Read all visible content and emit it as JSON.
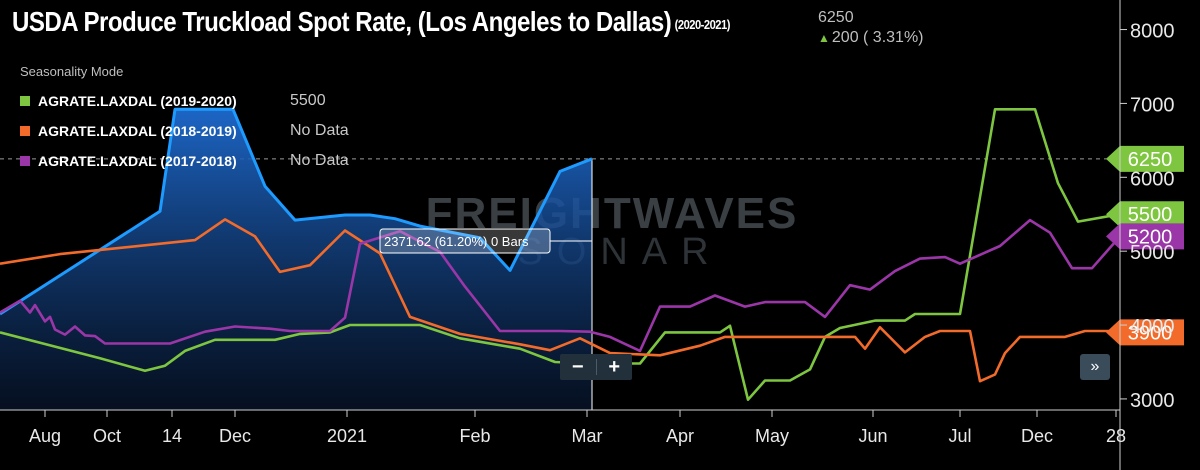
{
  "title": "USDA Produce Truckload Spot Rate, (Los Angeles to Dallas)",
  "title_range": "(2020-2021)",
  "last_value": "6250",
  "change_text": "200 ( 3.31%)",
  "change_arrow": "▲",
  "seasonality_label": "Seasonality Mode",
  "watermark": "FREIGHTWAVES",
  "watermark_sub": "SONAR",
  "tooltip_text": "2371.62 (61.20%) 0 Bars",
  "controls": {
    "zoom_out": "−",
    "zoom_in": "+",
    "expand": "»"
  },
  "legend": [
    {
      "name": "AGRATE.LAXDAL (2019-2020)",
      "value": "5500",
      "color": "#7ec640"
    },
    {
      "name": "AGRATE.LAXDAL (2018-2019)",
      "value": "No Data",
      "color": "#f26b2a"
    },
    {
      "name": "AGRATE.LAXDAL (2017-2018)",
      "value": "No Data",
      "color": "#9b36a8"
    }
  ],
  "chart_data": {
    "type": "line",
    "x_ticks": [
      "Aug",
      "Oct",
      "14",
      "Dec",
      "2021",
      "Feb",
      "Mar",
      "Apr",
      "May",
      "Jun",
      "Jul",
      "Dec",
      "28"
    ],
    "y_ticks": [
      3000,
      4000,
      5000,
      6000,
      7000,
      8000
    ],
    "y_tick_labels": [
      "3000",
      "4000",
      "5000",
      "6000",
      "7000",
      "8000"
    ],
    "ylim": [
      2850,
      8400
    ],
    "reference_line": 6250,
    "value_labels": [
      {
        "value": 6250,
        "text": "6250",
        "color": "#7ec640"
      },
      {
        "value": 5500,
        "text": "5500",
        "color": "#7ec640"
      },
      {
        "value": 5200,
        "text": "5200",
        "color": "#9b36a8"
      },
      {
        "value": 3900,
        "text": "3900",
        "color": "#f26b2a"
      }
    ],
    "series": [
      {
        "color": "#1e9bff",
        "fill": true,
        "points": [
          [
            0,
            4150
          ],
          [
            160,
            5540
          ],
          [
            175,
            6920
          ],
          [
            233,
            6920
          ],
          [
            265,
            5880
          ],
          [
            295,
            5420
          ],
          [
            345,
            5490
          ],
          [
            370,
            5490
          ],
          [
            395,
            5440
          ],
          [
            420,
            5340
          ],
          [
            450,
            5260
          ],
          [
            480,
            5180
          ],
          [
            510,
            4740
          ],
          [
            560,
            6080
          ],
          [
            592,
            6250
          ]
        ]
      },
      {
        "color": "#7ec640",
        "points": [
          [
            0,
            3900
          ],
          [
            100,
            3550
          ],
          [
            145,
            3380
          ],
          [
            165,
            3450
          ],
          [
            185,
            3650
          ],
          [
            215,
            3800
          ],
          [
            275,
            3800
          ],
          [
            300,
            3880
          ],
          [
            330,
            3900
          ],
          [
            350,
            4000
          ],
          [
            420,
            4000
          ],
          [
            460,
            3820
          ],
          [
            520,
            3680
          ],
          [
            555,
            3500
          ],
          [
            590,
            3480
          ],
          [
            640,
            3480
          ],
          [
            665,
            3900
          ],
          [
            720,
            3900
          ],
          [
            730,
            3990
          ],
          [
            748,
            2990
          ],
          [
            765,
            3250
          ],
          [
            790,
            3250
          ],
          [
            810,
            3400
          ],
          [
            825,
            3840
          ],
          [
            840,
            3960
          ],
          [
            875,
            4060
          ],
          [
            905,
            4060
          ],
          [
            915,
            4150
          ],
          [
            960,
            4150
          ],
          [
            995,
            6920
          ],
          [
            1035,
            6920
          ],
          [
            1058,
            5920
          ],
          [
            1078,
            5400
          ],
          [
            1120,
            5500
          ]
        ]
      },
      {
        "color": "#f26b2a",
        "points": [
          [
            0,
            4830
          ],
          [
            60,
            4960
          ],
          [
            195,
            5150
          ],
          [
            225,
            5430
          ],
          [
            255,
            5200
          ],
          [
            280,
            4720
          ],
          [
            310,
            4810
          ],
          [
            345,
            5280
          ],
          [
            380,
            4970
          ],
          [
            410,
            4110
          ],
          [
            460,
            3880
          ],
          [
            520,
            3740
          ],
          [
            550,
            3660
          ],
          [
            580,
            3820
          ],
          [
            610,
            3620
          ],
          [
            660,
            3590
          ],
          [
            700,
            3720
          ],
          [
            725,
            3840
          ],
          [
            750,
            3840
          ],
          [
            800,
            3840
          ],
          [
            855,
            3840
          ],
          [
            865,
            3680
          ],
          [
            880,
            3970
          ],
          [
            905,
            3630
          ],
          [
            925,
            3840
          ],
          [
            940,
            3920
          ],
          [
            970,
            3920
          ],
          [
            980,
            3240
          ],
          [
            995,
            3330
          ],
          [
            1005,
            3620
          ],
          [
            1020,
            3840
          ],
          [
            1065,
            3840
          ],
          [
            1085,
            3920
          ],
          [
            1120,
            3920
          ]
        ]
      },
      {
        "color": "#9b36a8",
        "points": [
          [
            0,
            4170
          ],
          [
            20,
            4330
          ],
          [
            30,
            4170
          ],
          [
            35,
            4270
          ],
          [
            45,
            4050
          ],
          [
            50,
            4110
          ],
          [
            55,
            3940
          ],
          [
            65,
            3870
          ],
          [
            75,
            3980
          ],
          [
            85,
            3860
          ],
          [
            95,
            3850
          ],
          [
            105,
            3750
          ],
          [
            170,
            3750
          ],
          [
            205,
            3910
          ],
          [
            235,
            3980
          ],
          [
            270,
            3950
          ],
          [
            290,
            3920
          ],
          [
            330,
            3920
          ],
          [
            345,
            4100
          ],
          [
            360,
            5100
          ],
          [
            400,
            5270
          ],
          [
            420,
            5130
          ],
          [
            440,
            4990
          ],
          [
            465,
            4520
          ],
          [
            500,
            3920
          ],
          [
            560,
            3920
          ],
          [
            590,
            3910
          ],
          [
            610,
            3840
          ],
          [
            640,
            3650
          ],
          [
            660,
            4250
          ],
          [
            690,
            4250
          ],
          [
            715,
            4400
          ],
          [
            745,
            4250
          ],
          [
            765,
            4310
          ],
          [
            805,
            4310
          ],
          [
            825,
            4110
          ],
          [
            850,
            4540
          ],
          [
            870,
            4480
          ],
          [
            895,
            4730
          ],
          [
            920,
            4900
          ],
          [
            945,
            4920
          ],
          [
            960,
            4830
          ],
          [
            1000,
            5070
          ],
          [
            1030,
            5420
          ],
          [
            1050,
            5250
          ],
          [
            1072,
            4770
          ],
          [
            1092,
            4770
          ],
          [
            1120,
            5200
          ]
        ]
      }
    ]
  }
}
